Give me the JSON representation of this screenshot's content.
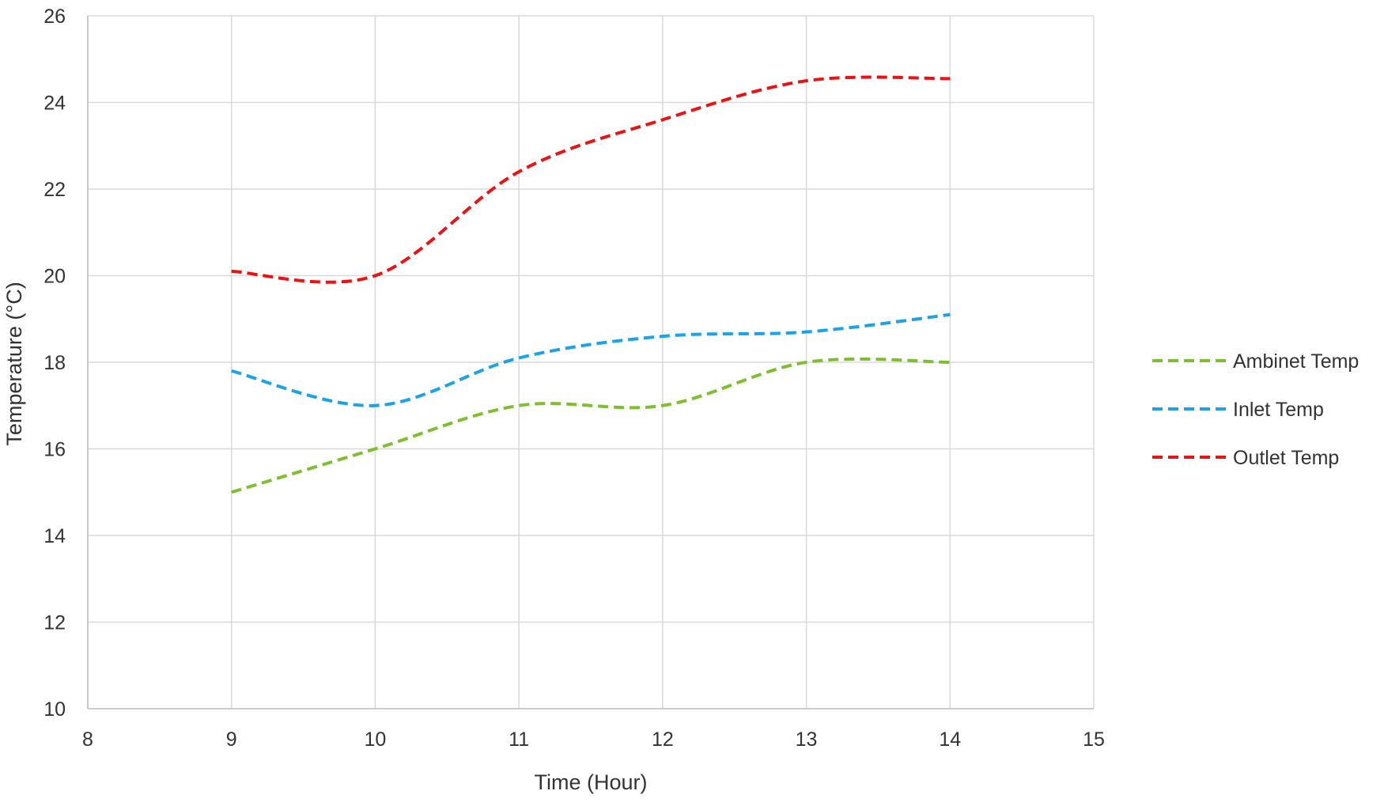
{
  "chart_data": {
    "type": "line",
    "title": "",
    "xlabel": "Time (Hour)",
    "ylabel": "Temperature (°C)",
    "xlim": [
      8,
      15
    ],
    "ylim": [
      10,
      26
    ],
    "xticks": [
      8,
      9,
      10,
      11,
      12,
      13,
      14,
      15
    ],
    "yticks": [
      10,
      12,
      14,
      16,
      18,
      20,
      22,
      24,
      26
    ],
    "grid": true,
    "legend_position": "right",
    "line_style": "dashed",
    "smooth": true,
    "series": [
      {
        "name": "Ambinet Temp",
        "color": "#7cc030",
        "x": [
          9,
          10,
          11,
          12,
          13,
          14
        ],
        "y": [
          15,
          16,
          17,
          17,
          18,
          18
        ]
      },
      {
        "name": "Inlet Temp",
        "color": "#1aa3e8",
        "x": [
          9,
          10,
          11,
          12,
          13,
          14
        ],
        "y": [
          17.8,
          17,
          18.1,
          18.6,
          18.7,
          19.1
        ]
      },
      {
        "name": "Outlet Temp",
        "color": "#ee1111",
        "x": [
          9,
          10,
          11,
          12,
          13,
          14
        ],
        "y": [
          20.1,
          20,
          22.4,
          23.6,
          24.5,
          24.55
        ]
      }
    ]
  }
}
